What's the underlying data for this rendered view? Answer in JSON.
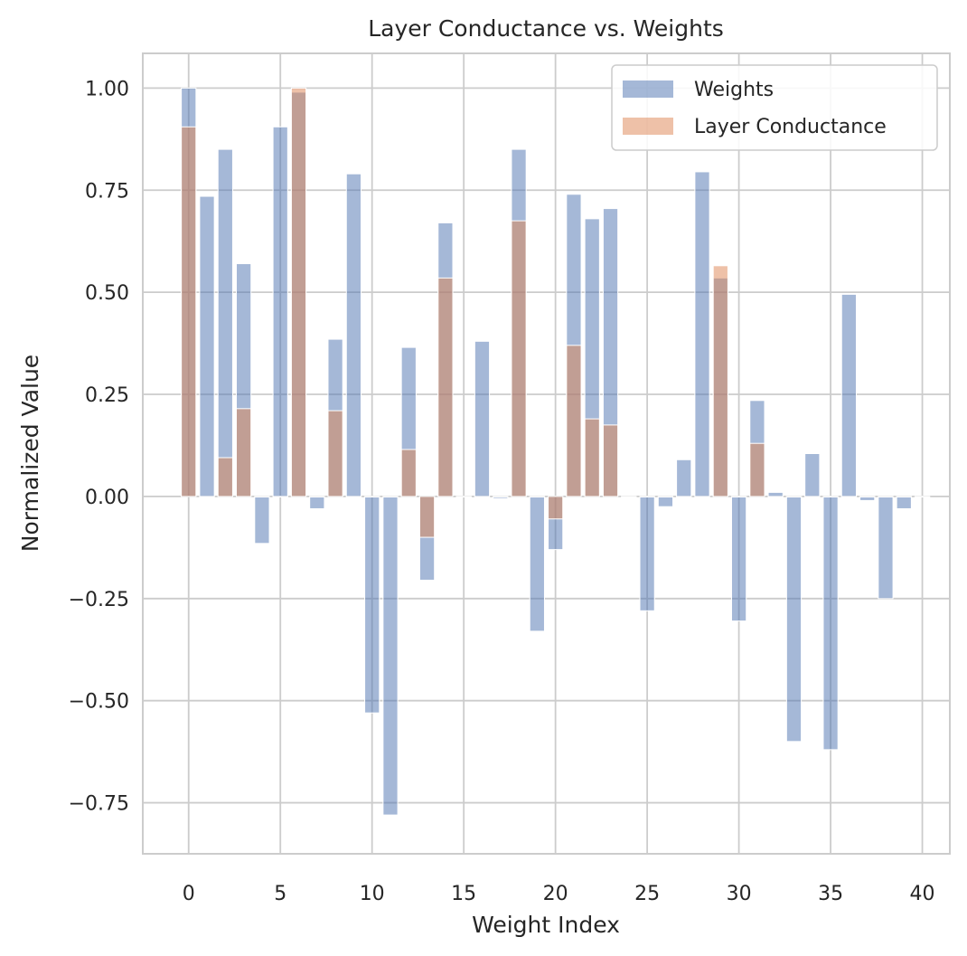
{
  "chart_data": {
    "type": "bar",
    "title": "Layer Conductance vs. Weights",
    "xlabel": "Weight Index",
    "ylabel": "Normalized Value",
    "xlim": [
      -2.5,
      41.5
    ],
    "ylim": [
      -0.875,
      1.085
    ],
    "xticks": [
      0,
      5,
      10,
      15,
      20,
      25,
      30,
      35,
      40
    ],
    "xtick_labels": [
      "0",
      "5",
      "10",
      "15",
      "20",
      "25",
      "30",
      "35",
      "40"
    ],
    "yticks": [
      -0.75,
      -0.5,
      -0.25,
      0.0,
      0.25,
      0.5,
      0.75,
      1.0
    ],
    "ytick_labels": [
      "−0.75",
      "−0.50",
      "−0.25",
      "0.00",
      "0.25",
      "0.50",
      "0.75",
      "1.00"
    ],
    "grid": true,
    "legend_position": "top-right",
    "x": [
      0,
      1,
      2,
      3,
      4,
      5,
      6,
      7,
      8,
      9,
      10,
      11,
      12,
      13,
      14,
      15,
      16,
      17,
      18,
      19,
      20,
      21,
      22,
      23,
      24,
      25,
      26,
      27,
      28,
      29,
      30,
      31,
      32,
      33,
      34,
      35,
      36,
      37,
      38,
      39,
      40
    ],
    "series": [
      {
        "name": "Weights",
        "color": "#4c72b0",
        "values": [
          1.0,
          0.735,
          0.85,
          0.57,
          -0.115,
          0.905,
          0.99,
          -0.03,
          0.385,
          0.79,
          -0.53,
          -0.78,
          0.365,
          -0.205,
          0.67,
          0.0,
          0.38,
          -0.005,
          0.85,
          -0.33,
          -0.13,
          0.74,
          0.68,
          0.705,
          0.0,
          -0.28,
          -0.025,
          0.09,
          0.795,
          0.535,
          -0.305,
          0.235,
          0.01,
          -0.6,
          0.105,
          -0.62,
          0.495,
          -0.01,
          -0.25,
          -0.03,
          0.0
        ]
      },
      {
        "name": "Layer Conductance",
        "color": "#dd8452",
        "values": [
          0.905,
          0.0,
          0.095,
          0.215,
          0.0,
          0.0,
          1.0,
          0.0,
          0.21,
          0.0,
          0.0,
          0.0,
          0.115,
          -0.1,
          0.535,
          0.0,
          0.0,
          0.0,
          0.675,
          0.0,
          -0.055,
          0.37,
          0.19,
          0.175,
          0.0,
          0.0,
          0.0,
          0.0,
          0.0,
          0.565,
          0.0,
          0.13,
          0.0,
          0.0,
          0.0,
          0.0,
          0.0,
          0.0,
          0.0,
          0.0,
          0.0
        ]
      }
    ]
  }
}
